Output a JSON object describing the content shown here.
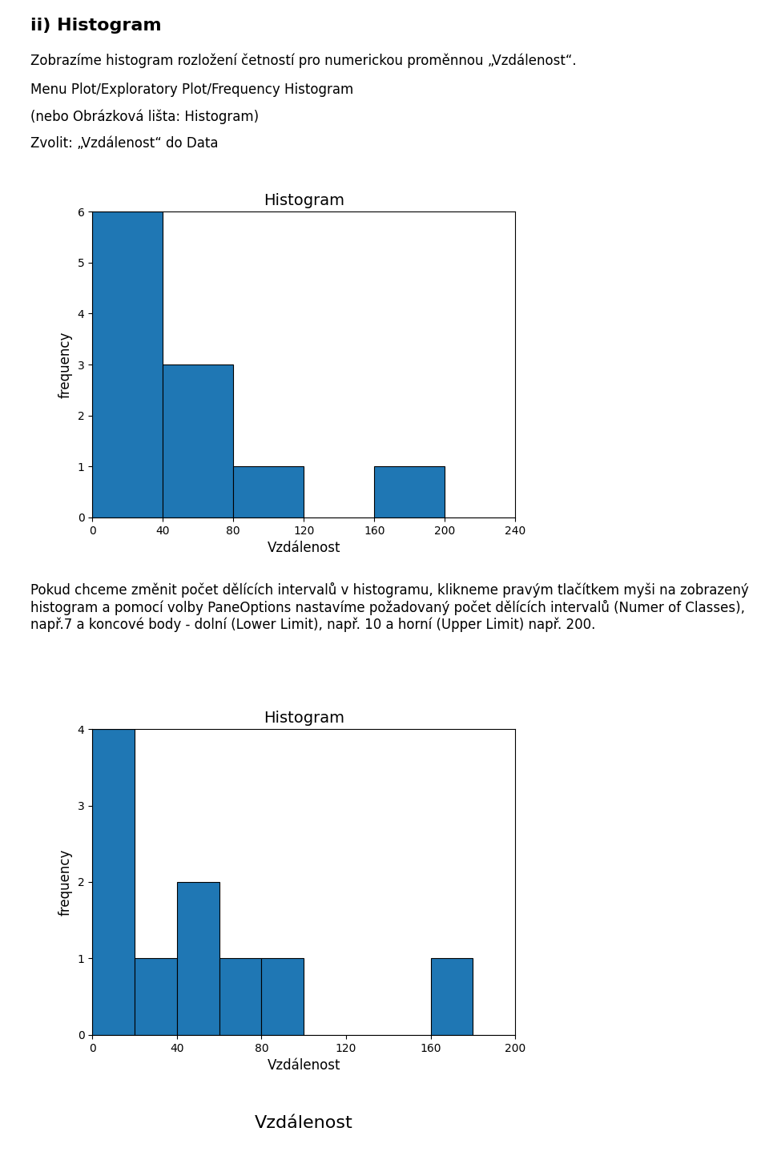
{
  "title": "ii) Histogram",
  "annotations": [
    "Zobrazíme histogram rozložení četností pro numerickou proměnnou „Vzdálenost“.",
    "Menu Plot/Exploratory Plot/Frequency Histogram",
    "(nebo Obrázková lišta: Histogram)",
    "Zvolit: „Vzdálenost“ do Data",
    "Pokud chceme změnit počet dělících intervalů v histogramu, klikneme pravým tlačítkem myši na zobrazený histogram a pomocí volby PaneOptions nastavíme požadovaný počet dělících intervalů (Numer of Classes), např.7 a koncové body - dolní (Lower Limit), např. 10 a horní (Upper Limit) např. 200."
  ],
  "chart_data": [
    {
      "type": "histogram",
      "title": "Histogram",
      "x_label": "Vzdálenost",
      "y_label": "frequency",
      "bins": [
        0,
        40,
        80,
        120,
        160,
        200,
        240
      ],
      "counts": [
        6,
        3,
        1,
        0,
        1,
        0
      ],
      "xlim": [
        0,
        240
      ],
      "ylim": [
        0,
        6
      ],
      "xticks": [
        0,
        40,
        80,
        120,
        160,
        200,
        240
      ],
      "yticks": [
        0,
        1,
        2,
        3,
        4,
        5,
        6
      ],
      "grid": false
    },
    {
      "type": "histogram",
      "title": "Histogram",
      "x_label": "Vzdálenost",
      "y_label": "frequency",
      "bins": [
        0,
        20,
        40,
        60,
        80,
        100,
        120,
        140,
        160,
        180,
        200
      ],
      "counts": [
        4,
        1,
        2,
        1,
        1,
        0,
        0,
        0,
        1,
        0
      ],
      "xlim": [
        0,
        200
      ],
      "ylim": [
        0,
        4
      ],
      "xticks": [
        0,
        40,
        80,
        120,
        160,
        200
      ],
      "yticks": [
        0,
        1,
        2,
        3,
        4
      ],
      "grid": false,
      "annotations": [
        "Vzdálenost"
      ]
    }
  ]
}
